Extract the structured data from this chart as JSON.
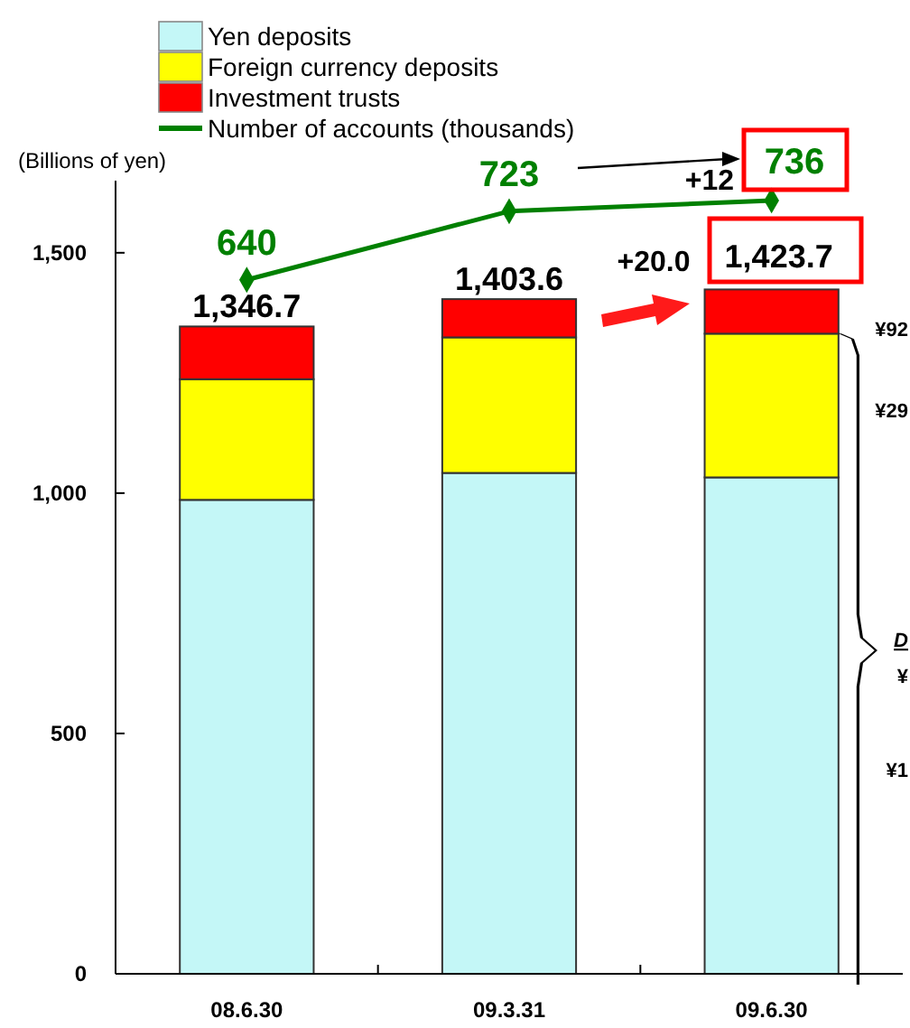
{
  "chart_data": {
    "type": "bar",
    "stacked": true,
    "ylabel": "(Billions of yen)",
    "categories": [
      "08.6.30",
      "09.3.31",
      "09.6.30"
    ],
    "series": [
      {
        "name": "Yen deposits",
        "color": "#c4f7f7",
        "values": [
          986,
          1042,
          1032.7
        ]
      },
      {
        "name": "Foreign currency deposits",
        "color": "#ffff00",
        "values": [
          251,
          282,
          299
        ]
      },
      {
        "name": "Investment trusts",
        "color": "#ff0000",
        "values": [
          109.7,
          79.6,
          92
        ]
      },
      {
        "name": "Number of accounts (thousands)",
        "type": "line",
        "axis": "y2",
        "color": "#008000",
        "marker": "diamond",
        "values": [
          640,
          723,
          736
        ],
        "value_labels": [
          "640",
          "723",
          "736"
        ]
      }
    ],
    "totals": [
      "1,346.7",
      "1,403.6",
      "1,423.7"
    ],
    "ylim": [
      0,
      1650
    ],
    "yticks": [
      0,
      500,
      {
        "value": 1000,
        "label": "1,000"
      },
      {
        "value": 1500,
        "label": "1,500"
      }
    ],
    "y2lim": [
      -200,
      760
    ],
    "legend": "top",
    "annotations": [
      "+12",
      "+20.0",
      "¥92",
      "¥29",
      "D",
      "¥",
      "¥1"
    ]
  }
}
